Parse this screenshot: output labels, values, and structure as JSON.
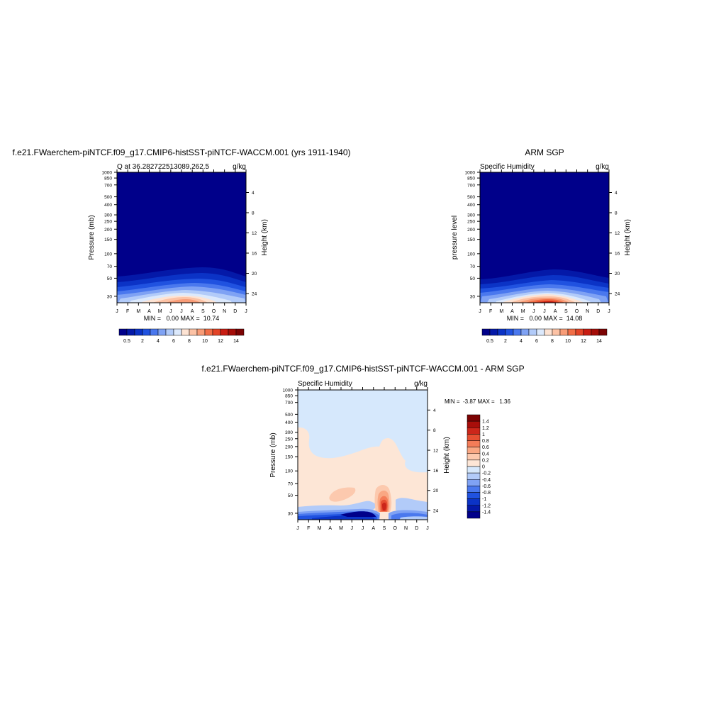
{
  "chart_data": [
    {
      "type": "heatmap",
      "title": "f.e21.FWaerchem-piNTCF.f09_g17.CMIP6-histSST-piNTCF-WACCM.001 (yrs 1911-1940)",
      "subtitle_left": "Q at 36.282722513089,262.5",
      "subtitle_right": "g/kg",
      "ylabel": "Pressure (mb)",
      "ylabel_right": "Height (km)",
      "x_ticks": [
        "J",
        "F",
        "M",
        "A",
        "M",
        "J",
        "J",
        "A",
        "S",
        "O",
        "N",
        "D",
        "J"
      ],
      "y_ticks": [
        "30",
        "50",
        "70",
        "100",
        "150",
        "200",
        "250",
        "300",
        "400",
        "500",
        "700",
        "850",
        "1000"
      ],
      "y_ticks_right": [
        "24",
        "20",
        "16",
        "12",
        "8",
        "4"
      ],
      "stats": "MIN =   0.00 MAX =  10.74",
      "min": 0.0,
      "max": 10.74,
      "colorbar_labels": [
        "0.5",
        "2",
        "4",
        "6",
        "8",
        "10",
        "12",
        "14"
      ]
    },
    {
      "type": "heatmap",
      "title": "ARM SGP",
      "subtitle_left": "Specific Humidity",
      "subtitle_right": "g/kg",
      "ylabel": "pressure level",
      "ylabel_right": "Height (km)",
      "x_ticks": [
        "J",
        "F",
        "M",
        "A",
        "M",
        "J",
        "J",
        "A",
        "S",
        "O",
        "N",
        "D",
        "J"
      ],
      "y_ticks": [
        "30",
        "50",
        "70",
        "100",
        "150",
        "200",
        "250",
        "300",
        "400",
        "500",
        "700",
        "850",
        "1000"
      ],
      "y_ticks_right": [
        "24",
        "20",
        "16",
        "12",
        "8",
        "4"
      ],
      "stats": "MIN =   0.00 MAX =  14.08",
      "min": 0.0,
      "max": 14.08,
      "colorbar_labels": [
        "0.5",
        "2",
        "4",
        "6",
        "8",
        "10",
        "12",
        "14"
      ]
    },
    {
      "type": "heatmap",
      "title": "f.e21.FWaerchem-piNTCF.f09_g17.CMIP6-histSST-piNTCF-WACCM.001 - ARM SGP",
      "subtitle_left": "Specific Humidity",
      "subtitle_right": "g/kg",
      "ylabel": "Pressure (mb)",
      "ylabel_right": "Height (km)",
      "x_ticks": [
        "J",
        "F",
        "M",
        "A",
        "M",
        "J",
        "J",
        "A",
        "S",
        "O",
        "N",
        "D",
        "J"
      ],
      "y_ticks": [
        "30",
        "50",
        "70",
        "100",
        "150",
        "200",
        "250",
        "300",
        "400",
        "500",
        "700",
        "850",
        "1000"
      ],
      "y_ticks_right": [
        "24",
        "20",
        "16",
        "12",
        "8",
        "4"
      ],
      "stats": "MIN =  -3.87 MAX =   1.36",
      "min": -3.87,
      "max": 1.36,
      "colorbar_labels": [
        "1.4",
        "1.2",
        "1",
        "0.8",
        "0.6",
        "0.4",
        "0.2",
        "0",
        "-0.2",
        "-0.4",
        "-0.6",
        "-0.8",
        "-1",
        "-1.2",
        "-1.4"
      ]
    }
  ],
  "colors": {
    "abs_scale": [
      "#00008a",
      "#0419a8",
      "#0b33c6",
      "#2052e0",
      "#4a78ee",
      "#7fa2f4",
      "#b2cbf9",
      "#dce9fc",
      "#fde3d3",
      "#fcc2a5",
      "#f89c77",
      "#f16e47",
      "#e34427",
      "#c81c12",
      "#a50d08",
      "#7c0303"
    ],
    "diff_scale": [
      "#00008a",
      "#0419a8",
      "#0b33c6",
      "#2052e0",
      "#4a78ee",
      "#7fa2f4",
      "#b2cbf9",
      "#d6e8fc",
      "#fde6d6",
      "#fcc9ae",
      "#f9a783",
      "#f47c58",
      "#e64f32",
      "#cc261a",
      "#a80e0a",
      "#7c0303"
    ]
  }
}
